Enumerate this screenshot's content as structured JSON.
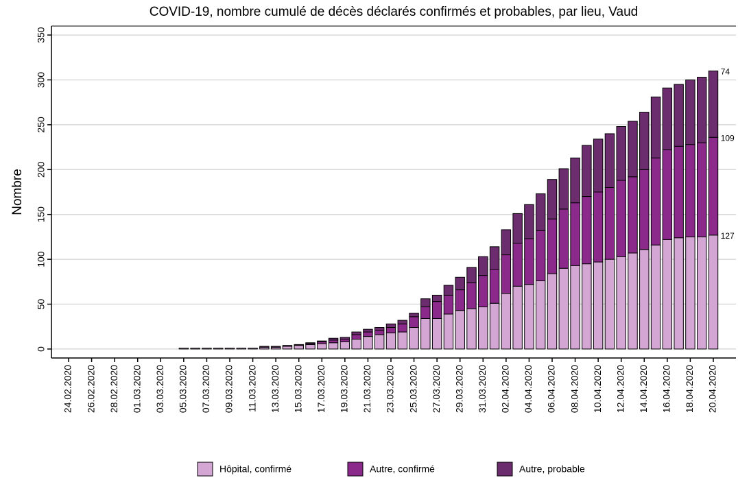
{
  "chart_data": {
    "type": "stacked_bar",
    "title": "COVID-19, nombre cumulé de décès déclarés confirmés et probables, par lieu, Vaud",
    "y_label": "Nombre",
    "categories": [
      "24.02.2020",
      null,
      "26.02.2020",
      null,
      "28.02.2020",
      null,
      "01.03.2020",
      null,
      "03.03.2020",
      null,
      "05.03.2020",
      null,
      "07.03.2020",
      null,
      "09.03.2020",
      null,
      "11.03.2020",
      null,
      "13.03.2020",
      null,
      "15.03.2020",
      null,
      "17.03.2020",
      null,
      "19.03.2020",
      null,
      "21.03.2020",
      null,
      "23.03.2020",
      null,
      "25.03.2020",
      null,
      "27.03.2020",
      null,
      "29.03.2020",
      null,
      "31.03.2020",
      null,
      "02.04.2020",
      null,
      "04.04.2020",
      null,
      "06.04.2020",
      null,
      "08.04.2020",
      null,
      "10.04.2020",
      null,
      "12.04.2020",
      null,
      "14.04.2020",
      null,
      "16.04.2020",
      null,
      "18.04.2020",
      null,
      "20.04.2020"
    ],
    "series": [
      {
        "name": "Hôpital, confirmé",
        "color": "#d3a6d3",
        "values": [
          0,
          0,
          0,
          0,
          0,
          0,
          0,
          0,
          0,
          0,
          1,
          1,
          1,
          1,
          1,
          1,
          1,
          2,
          2,
          3,
          4,
          5,
          6,
          7,
          8,
          11,
          14,
          16,
          18,
          19,
          24,
          34,
          34,
          39,
          43,
          45,
          47,
          51,
          62,
          70,
          72,
          76,
          84,
          90,
          93,
          95,
          97,
          100,
          103,
          107,
          111,
          116,
          122,
          124,
          125,
          125,
          127
        ]
      },
      {
        "name": "Autre, confirmé",
        "color": "#8b2a8b",
        "values": [
          0,
          0,
          0,
          0,
          0,
          0,
          0,
          0,
          0,
          0,
          0,
          0,
          0,
          0,
          0,
          0,
          0,
          0,
          0,
          0,
          0,
          1,
          2,
          3,
          3,
          5,
          5,
          5,
          6,
          9,
          12,
          13,
          19,
          21,
          23,
          29,
          35,
          38,
          43,
          48,
          51,
          56,
          61,
          66,
          70,
          75,
          78,
          80,
          85,
          85,
          89,
          97,
          100,
          102,
          103,
          105,
          109
        ]
      },
      {
        "name": "Autre, probable",
        "color": "#6b2d6d",
        "values": [
          0,
          0,
          0,
          0,
          0,
          0,
          0,
          0,
          0,
          0,
          0,
          0,
          0,
          0,
          0,
          0,
          0,
          1,
          1,
          1,
          1,
          1,
          1,
          2,
          2,
          3,
          3,
          3,
          4,
          4,
          4,
          9,
          7,
          11,
          14,
          17,
          21,
          25,
          28,
          33,
          38,
          41,
          44,
          45,
          50,
          57,
          59,
          60,
          60,
          62,
          64,
          68,
          69,
          69,
          72,
          73,
          74
        ]
      }
    ],
    "ylim": [
      -10,
      360
    ],
    "yticks": [
      0,
      50,
      100,
      150,
      200,
      250,
      300,
      350
    ],
    "grid": true
  }
}
